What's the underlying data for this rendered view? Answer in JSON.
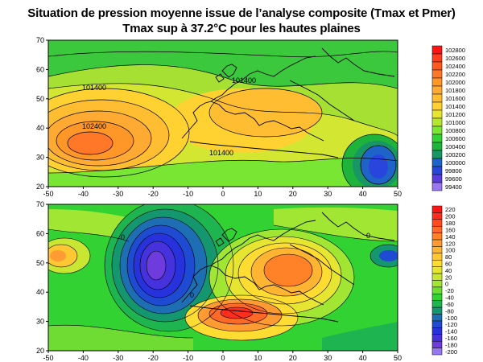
{
  "title_line1": "Situation de pression moyenne issue de l’analyse composite (Tmax et Pmer)",
  "title_line2": "Tmax sup à 37.2°C  pour les hautes plaines",
  "x_ticks": [
    "-50",
    "-40",
    "-30",
    "-20",
    "-10",
    "0",
    "10",
    "20",
    "30",
    "40",
    "50"
  ],
  "top_map": {
    "y_ticks": [
      "70",
      "60",
      "50",
      "40",
      "30",
      "20"
    ],
    "contour_labels": [
      "101400",
      "102400",
      "101400",
      "101400"
    ],
    "legend": {
      "labels": [
        "102800",
        "102600",
        "102400",
        "102200",
        "102000",
        "101800",
        "101600",
        "101400",
        "101200",
        "101000",
        "100800",
        "100600",
        "100400",
        "100200",
        "100000",
        "99800",
        "99600",
        "99400"
      ],
      "colors": [
        "#ff1414",
        "#ff3c1e",
        "#ff5a1e",
        "#ff7828",
        "#ff9628",
        "#ffaa32",
        "#ffbe32",
        "#ffd232",
        "#e6e632",
        "#b4e632",
        "#78e632",
        "#32d232",
        "#1eb43c",
        "#189664",
        "#1e64c8",
        "#2846dc",
        "#5a3cdc",
        "#9678f0"
      ]
    }
  },
  "bottom_map": {
    "y_ticks": [
      "70",
      "60",
      "50",
      "40",
      "30",
      "20"
    ],
    "contour_labels": [
      "0",
      "0",
      "0"
    ],
    "legend": {
      "labels": [
        "220",
        "200",
        "180",
        "160",
        "140",
        "120",
        "100",
        "80",
        "60",
        "40",
        "20",
        "0",
        "-20",
        "-40",
        "-60",
        "-80",
        "-100",
        "-120",
        "-140",
        "-160",
        "-180",
        "-200"
      ],
      "colors": [
        "#ff1414",
        "#ff2d1e",
        "#ff4b1e",
        "#ff6928",
        "#ff8228",
        "#ff9b32",
        "#ffb432",
        "#ffc832",
        "#ffdc32",
        "#e6e632",
        "#c8e632",
        "#a0e632",
        "#6edc32",
        "#32d232",
        "#1eb450",
        "#14966e",
        "#1e6eb4",
        "#1e4bd2",
        "#2832dc",
        "#4632dc",
        "#6e3cdc",
        "#9678f0"
      ]
    }
  }
}
